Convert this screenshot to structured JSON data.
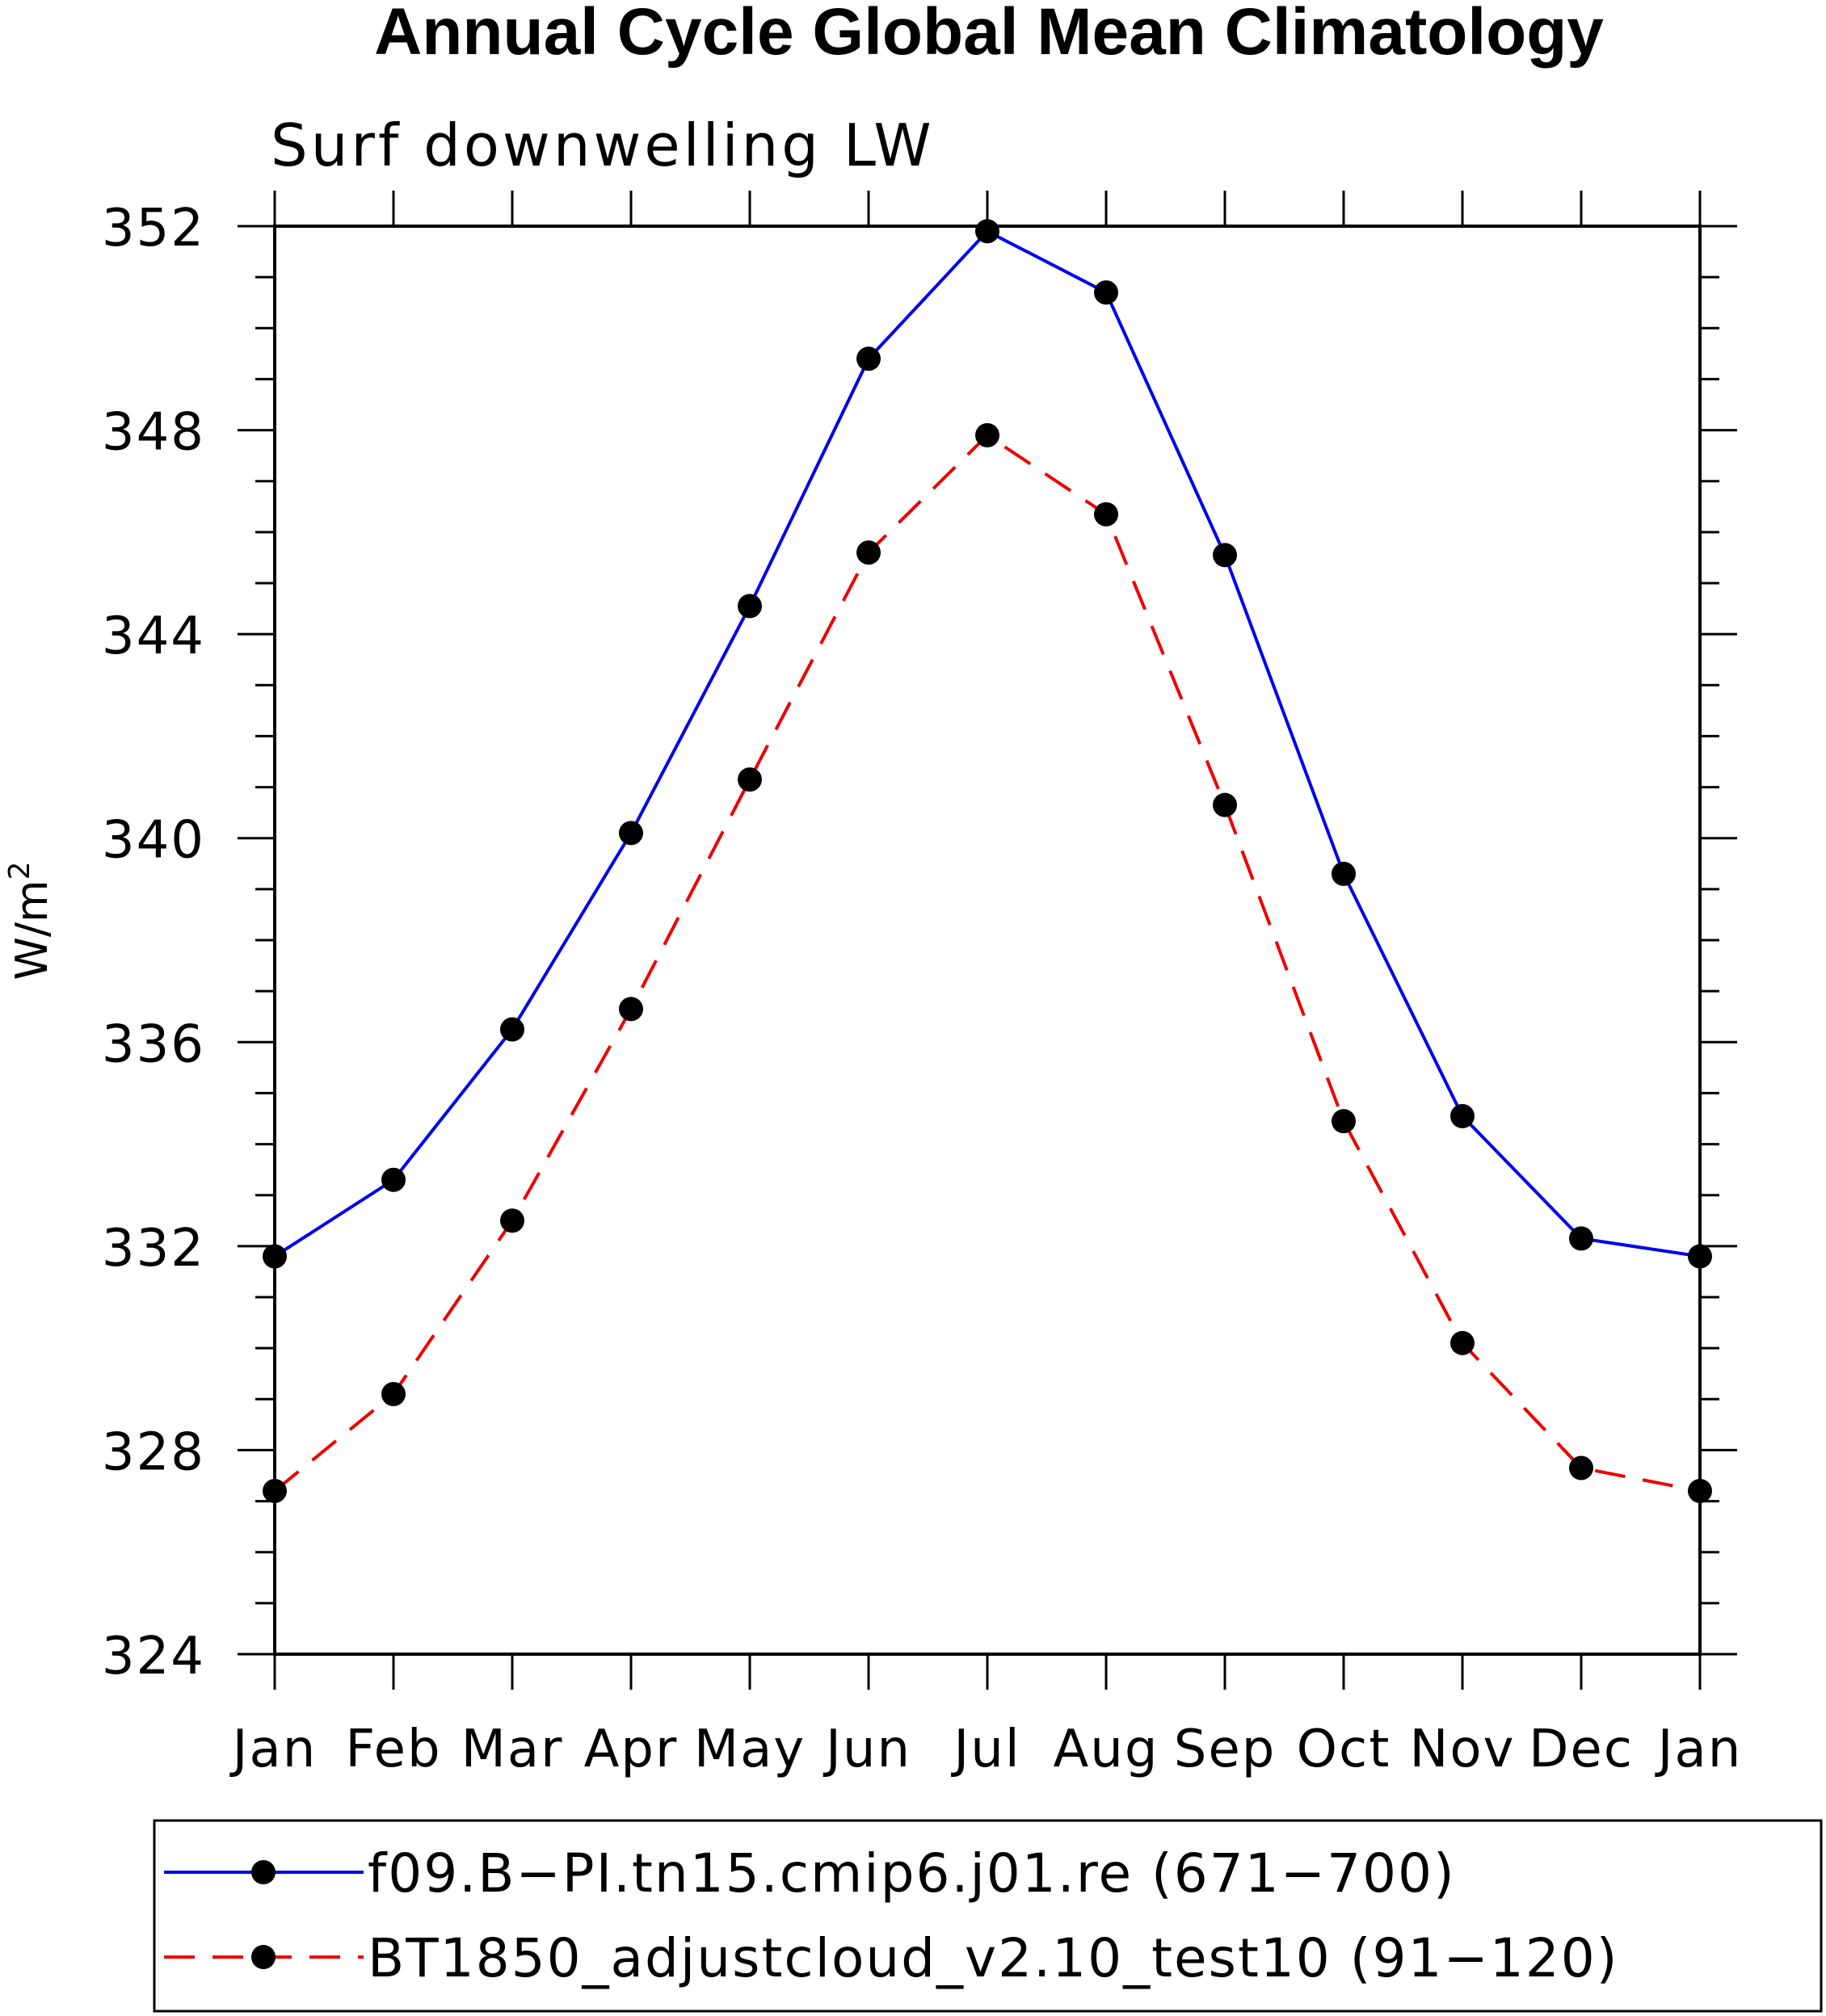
{
  "chart_data": {
    "type": "line",
    "title": "Annual Cycle Global Mean Climatology",
    "subtitle": "Surf downwelling LW",
    "xlabel": "",
    "ylabel": "W/m",
    "ylabel_superscript": "2",
    "categories": [
      "Jan",
      "Feb",
      "Mar",
      "Apr",
      "May",
      "Jun",
      "Jul",
      "Aug",
      "Sep",
      "Oct",
      "Nov",
      "Dec",
      "Jan"
    ],
    "ylim": [
      324,
      352
    ],
    "yticks": [
      324,
      328,
      332,
      336,
      340,
      344,
      348,
      352
    ],
    "yticks_labels": [
      "324",
      "328",
      "332",
      "336",
      "340",
      "344",
      "348",
      "352"
    ],
    "legend_position": "bottom",
    "series": [
      {
        "name": "f09.B−PI.tn15.cmip6.j01.re (671−700)",
        "color": "#0000ee",
        "dash": "solid",
        "values": [
          331.8,
          333.3,
          336.25,
          340.1,
          344.55,
          349.4,
          351.9,
          350.7,
          345.55,
          339.3,
          334.55,
          332.15,
          331.8
        ]
      },
      {
        "name": "BT1850_adjustcloud_v2.10_test10 (91−120)",
        "color": "#ee0000",
        "dash": "dashed",
        "values": [
          327.2,
          329.1,
          332.5,
          336.65,
          341.15,
          345.6,
          347.9,
          346.35,
          340.65,
          334.45,
          330.1,
          327.65,
          327.2
        ]
      }
    ]
  }
}
